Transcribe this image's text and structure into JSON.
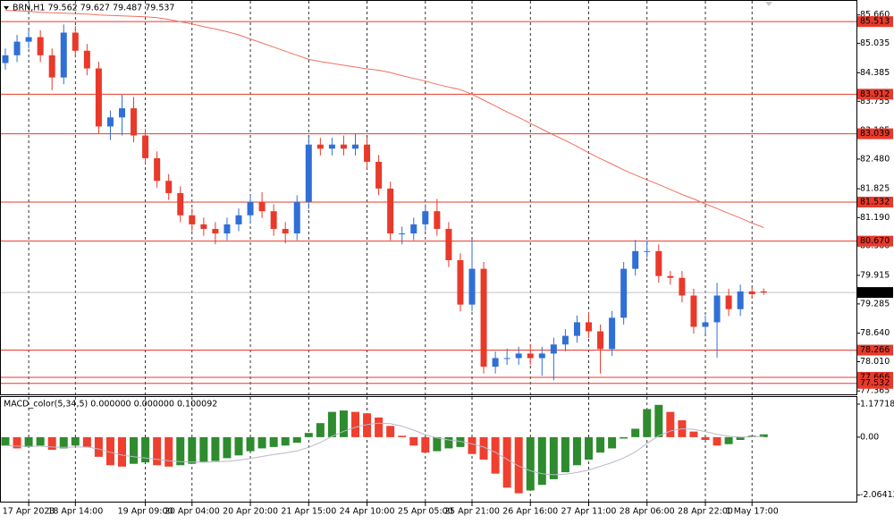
{
  "chart_data": [
    {
      "type": "candlestick",
      "title": "BRN,H1  79.562 79.627 79.487 79.537",
      "categories": [
        null,
        null,
        "17 Apr 2023",
        null,
        null,
        null,
        "18 Apr 14:00",
        null,
        null,
        null,
        null,
        null,
        "19 Apr 09:00",
        null,
        null,
        null,
        "20 Apr 04:00",
        null,
        null,
        null,
        null,
        "20 Apr 20:00",
        null,
        null,
        null,
        null,
        "21 Apr 15:00",
        null,
        null,
        null,
        null,
        "24 Apr 10:00",
        null,
        null,
        null,
        null,
        "25 Apr 05:00",
        null,
        null,
        null,
        "25 Apr 21:00",
        null,
        null,
        null,
        null,
        "26 Apr 16:00",
        null,
        null,
        null,
        null,
        "27 Apr 11:00",
        null,
        null,
        null,
        null,
        "28 Apr 06:00",
        null,
        null,
        null,
        null,
        "28 Apr 22:00",
        null,
        null,
        null,
        "1 May 17:00",
        null
      ],
      "open": [
        84.6,
        84.77,
        85.07,
        85.17,
        84.77,
        84.28,
        85.27,
        84.87,
        84.48,
        83.2,
        83.4,
        83.6,
        83.0,
        82.5,
        82.0,
        81.73,
        81.24,
        81.04,
        80.94,
        80.84,
        81.04,
        81.24,
        81.53,
        81.33,
        80.94,
        80.84,
        81.53,
        82.8,
        82.71,
        82.8,
        82.71,
        82.8,
        82.42,
        81.83,
        80.84,
        80.84,
        81.04,
        81.33,
        80.94,
        80.25,
        79.27,
        80.06,
        77.9,
        78.09,
        78.09,
        78.19,
        78.09,
        78.19,
        78.39,
        78.58,
        78.88,
        78.68,
        78.29,
        78.98,
        80.06,
        80.45,
        80.45,
        79.9,
        79.86,
        79.47,
        78.78,
        78.88,
        79.47,
        79.17,
        79.56,
        79.562
      ],
      "high": [
        84.92,
        85.22,
        85.32,
        85.32,
        84.92,
        85.45,
        85.42,
        85.02,
        84.63,
        83.55,
        83.9,
        83.85,
        83.15,
        82.65,
        82.15,
        81.88,
        81.39,
        81.19,
        81.09,
        81.19,
        81.39,
        81.68,
        81.75,
        81.48,
        81.09,
        81.68,
        82.95,
        82.95,
        82.95,
        83.0,
        83.05,
        82.95,
        82.57,
        81.98,
        80.99,
        81.19,
        81.48,
        81.6,
        81.09,
        80.4,
        80.7,
        80.21,
        78.24,
        78.3,
        78.34,
        78.4,
        78.34,
        78.54,
        78.73,
        79.03,
        79.1,
        78.83,
        79.13,
        80.21,
        80.7,
        80.68,
        80.6,
        80.01,
        80.01,
        79.62,
        79.03,
        79.75,
        79.62,
        79.71,
        79.66,
        79.627
      ],
      "low": [
        84.45,
        84.62,
        84.92,
        84.62,
        84.0,
        84.13,
        84.72,
        84.33,
        83.05,
        82.9,
        83.0,
        82.85,
        82.35,
        81.85,
        81.58,
        81.09,
        80.89,
        80.79,
        80.6,
        80.69,
        80.89,
        81.09,
        81.18,
        80.79,
        80.62,
        80.69,
        81.38,
        82.56,
        82.56,
        82.56,
        82.56,
        82.27,
        81.68,
        80.69,
        80.6,
        80.69,
        80.89,
        80.79,
        80.1,
        79.12,
        79.12,
        77.75,
        77.75,
        77.94,
        77.94,
        77.94,
        77.7,
        77.6,
        78.24,
        78.43,
        78.53,
        77.75,
        78.14,
        78.83,
        79.91,
        80.3,
        79.75,
        79.71,
        79.32,
        78.63,
        78.63,
        78.1,
        79.02,
        79.02,
        79.4,
        79.487
      ],
      "close": [
        84.77,
        85.07,
        85.17,
        84.77,
        84.28,
        85.27,
        84.87,
        84.48,
        83.2,
        83.4,
        83.6,
        83.0,
        82.5,
        82.0,
        81.73,
        81.24,
        81.04,
        80.94,
        80.84,
        81.04,
        81.24,
        81.53,
        81.33,
        80.94,
        80.84,
        81.53,
        82.8,
        82.71,
        82.8,
        82.71,
        82.8,
        82.42,
        81.83,
        80.84,
        80.84,
        81.04,
        81.33,
        80.94,
        80.25,
        79.27,
        80.06,
        77.9,
        78.09,
        78.09,
        78.19,
        78.09,
        78.19,
        78.39,
        78.58,
        78.88,
        78.68,
        78.29,
        78.98,
        80.06,
        80.45,
        80.45,
        79.9,
        79.86,
        79.47,
        78.78,
        78.88,
        79.47,
        79.17,
        79.56,
        79.5,
        79.537
      ],
      "up_color": "#2f6fd6",
      "down_color": "#e8392a",
      "ma": {
        "color": "#f07060",
        "values": [
          85.76,
          85.75,
          85.74,
          85.72,
          85.71,
          85.7,
          85.69,
          85.68,
          85.66,
          85.65,
          85.64,
          85.63,
          85.62,
          85.6,
          85.56,
          85.51,
          85.46,
          85.4,
          85.35,
          85.29,
          85.22,
          85.13,
          85.04,
          84.95,
          84.86,
          84.77,
          84.68,
          84.63,
          84.59,
          84.55,
          84.51,
          84.47,
          84.44,
          84.39,
          84.32,
          84.26,
          84.2,
          84.13,
          84.07,
          84.01,
          83.91,
          83.78,
          83.65,
          83.52,
          83.4,
          83.27,
          83.14,
          83.01,
          82.89,
          82.76,
          82.62,
          82.49,
          82.37,
          82.24,
          82.13,
          82.02,
          81.92,
          81.81,
          81.7,
          81.6,
          81.49,
          81.39,
          81.28,
          81.18,
          81.07,
          80.97
        ]
      },
      "ylim": [
        77.31,
        85.95
      ],
      "yticks": [
        {
          "value": 85.66,
          "label": "85.660"
        },
        {
          "value": 85.035,
          "label": "85.035"
        },
        {
          "value": 84.385,
          "label": "84.385"
        },
        {
          "value": 83.755,
          "label": "83.755"
        },
        {
          "value": 83.105,
          "label": "83.105"
        },
        {
          "value": 82.48,
          "label": "82.480"
        },
        {
          "value": 81.825,
          "label": "81.825"
        },
        {
          "value": 81.19,
          "label": "81.190"
        },
        {
          "value": 80.56,
          "label": "80.560"
        },
        {
          "value": 79.915,
          "label": "79.915"
        },
        {
          "value": 79.285,
          "label": "79.285"
        },
        {
          "value": 78.64,
          "label": "78.640"
        },
        {
          "value": 78.01,
          "label": "78.010"
        },
        {
          "value": 77.365,
          "label": "77.365"
        }
      ],
      "levels": [
        85.513,
        83.912,
        83.039,
        81.532,
        {
          "value": 80.67,
          "label": "80.670"
        },
        78.266,
        77.666,
        77.532
      ],
      "level_color": "#e8392a",
      "current_price": 79.537
    },
    {
      "type": "macd",
      "title": "MACD_color(5,34,5) 0.000000 0.000000 0.100092",
      "values": [
        -0.3,
        -0.4,
        -0.35,
        -0.3,
        -0.45,
        -0.4,
        -0.3,
        -0.35,
        -0.7,
        -1.0,
        -1.05,
        -0.95,
        -0.9,
        -1.0,
        -1.05,
        -1.0,
        -0.95,
        -0.9,
        -0.85,
        -0.75,
        -0.65,
        -0.5,
        -0.4,
        -0.35,
        -0.3,
        -0.2,
        0.15,
        0.5,
        0.9,
        0.95,
        0.9,
        0.85,
        0.7,
        0.4,
        0.05,
        -0.3,
        -0.55,
        -0.5,
        -0.4,
        -0.35,
        -0.6,
        -0.8,
        -1.3,
        -1.8,
        -2.0,
        -1.9,
        -1.7,
        -1.5,
        -1.25,
        -1.0,
        -0.8,
        -0.55,
        -0.4,
        -0.05,
        0.3,
        1.0,
        1.15,
        0.9,
        0.6,
        0.2,
        -0.1,
        -0.3,
        -0.25,
        -0.1,
        0.05,
        0.1
      ],
      "signal": {
        "color": "#b8b8c8",
        "values": [
          -0.3,
          -0.32,
          -0.33,
          -0.32,
          -0.35,
          -0.36,
          -0.35,
          -0.35,
          -0.42,
          -0.54,
          -0.64,
          -0.7,
          -0.74,
          -0.79,
          -0.84,
          -0.87,
          -0.89,
          -0.89,
          -0.88,
          -0.86,
          -0.82,
          -0.76,
          -0.69,
          -0.62,
          -0.56,
          -0.49,
          -0.36,
          -0.19,
          0.03,
          0.21,
          0.35,
          0.45,
          0.5,
          0.48,
          0.39,
          0.25,
          0.09,
          -0.03,
          -0.1,
          -0.15,
          -0.24,
          -0.35,
          -0.54,
          -0.79,
          -1.03,
          -1.2,
          -1.3,
          -1.34,
          -1.32,
          -1.26,
          -1.17,
          -1.04,
          -0.91,
          -0.74,
          -0.53,
          -0.22,
          0.05,
          0.22,
          0.3,
          0.28,
          0.2,
          0.1,
          0.03,
          0,
          0.01,
          0.03
        ]
      },
      "up_color": "#2e8b2e",
      "down_color": "#ef3f2f",
      "ylim": [
        -2.33,
        1.43
      ],
      "yticks": [
        1.177187,
        {
          "value": 0,
          "label": "0.00"
        },
        -2.06412
      ]
    }
  ]
}
